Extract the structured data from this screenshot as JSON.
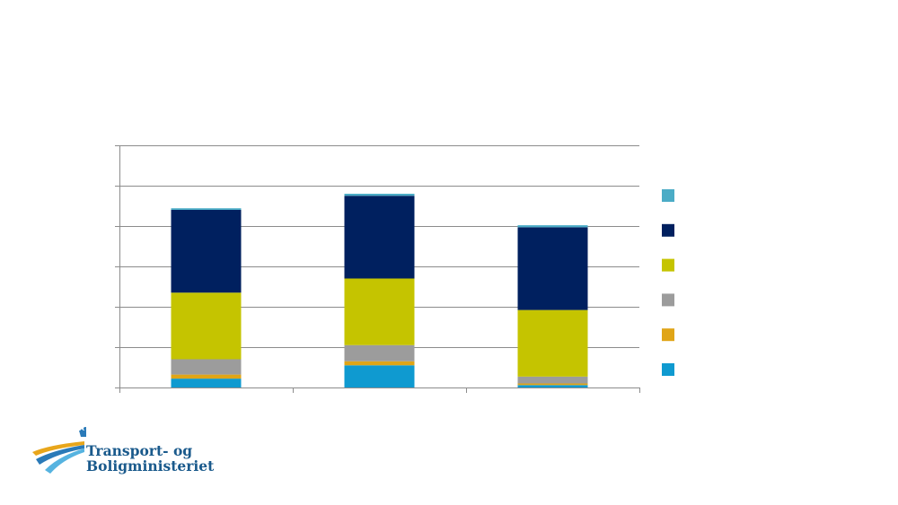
{
  "chart_data": {
    "type": "bar",
    "stacked": true,
    "title": "",
    "xlabel": "",
    "ylabel": "",
    "categories": [
      "",
      "",
      ""
    ],
    "ylim": [
      0,
      6
    ],
    "y_ticks": [
      0,
      1,
      2,
      3,
      4,
      5,
      6
    ],
    "grid": true,
    "legend_position": "right",
    "series": [
      {
        "color": "#0f9ad0",
        "values": [
          0.22,
          0.55,
          0.06
        ]
      },
      {
        "color": "#e0a517",
        "values": [
          0.1,
          0.1,
          0.04
        ]
      },
      {
        "color": "#9c9c9c",
        "values": [
          0.38,
          0.4,
          0.17
        ]
      },
      {
        "color": "#c5c400",
        "values": [
          1.65,
          1.65,
          1.65
        ]
      },
      {
        "color": "#00205f",
        "values": [
          2.05,
          2.05,
          2.05
        ]
      },
      {
        "color": "#4bacc6",
        "values": [
          0.04,
          0.05,
          0.05
        ]
      }
    ]
  },
  "logo": {
    "line1": "Transport- og",
    "line2": "Boligministeriet"
  },
  "icons": {
    "logo_mark": "crown-road-emblem-icon"
  }
}
